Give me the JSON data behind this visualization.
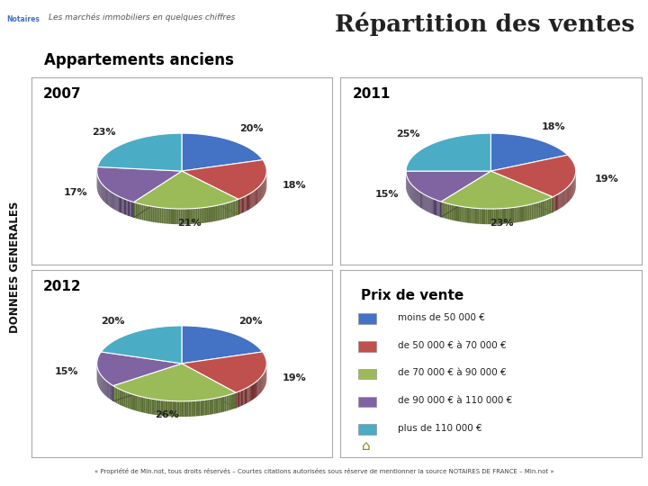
{
  "title": "Répartition des ventes",
  "subtitle": "Appartements anciens",
  "header_text": "Les marchés immobiliers en quelques chiffres",
  "donnees_label": "DONNEES GENERALES",
  "footer": "« Propriété de Min.not, tous droits réservés – Courtes citations autorisées sous réserve de mentionner la source NOTAIRES DE FRANCE – Min.not »",
  "colors": [
    "#4472C4",
    "#C0504D",
    "#9BBB59",
    "#8064A2",
    "#4BACC6"
  ],
  "legend_title": "Prix de vente",
  "legend_labels": [
    "moins de 50 000 €",
    "de 50 000 € à 70 000 €",
    "de 70 000 € à 90 000 €",
    "de 90 000 € à 110 000 €",
    "plus de 110 000 €"
  ],
  "pie_2007": {
    "year": "2007",
    "values": [
      20,
      18,
      21,
      17,
      23
    ],
    "labels": [
      "20%",
      "18%",
      "21%",
      "17%",
      "23%"
    ]
  },
  "pie_2011": {
    "year": "2011",
    "values": [
      18,
      19,
      23,
      15,
      25
    ],
    "labels": [
      "18%",
      "19%",
      "23%",
      "15%",
      "25%"
    ]
  },
  "pie_2012": {
    "year": "2012",
    "values": [
      20,
      19,
      26,
      15,
      20
    ],
    "labels": [
      "20%",
      "19%",
      "26%",
      "15%",
      "20%"
    ]
  },
  "bg_color": "#FFFFFF",
  "panel_edge_color": "#AAAAAA"
}
